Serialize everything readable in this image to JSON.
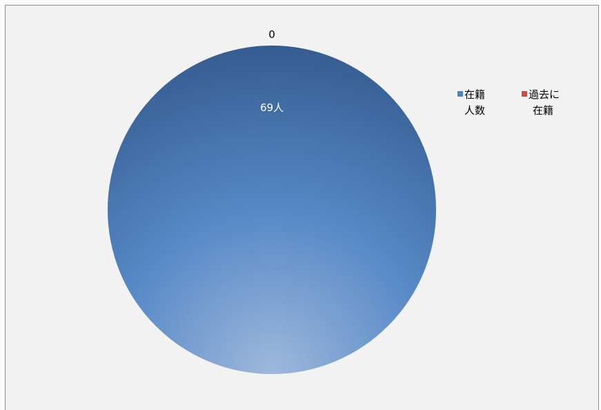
{
  "chart_data": {
    "type": "pie",
    "categories": [
      "在籍\n人数",
      "過去に\n在籍"
    ],
    "values": [
      69,
      0
    ],
    "data_labels": [
      "69人",
      "0"
    ],
    "colors": [
      "#4f81bd",
      "#c0504d"
    ],
    "legend_position": "right",
    "title": "",
    "xlabel": "",
    "ylabel": ""
  }
}
